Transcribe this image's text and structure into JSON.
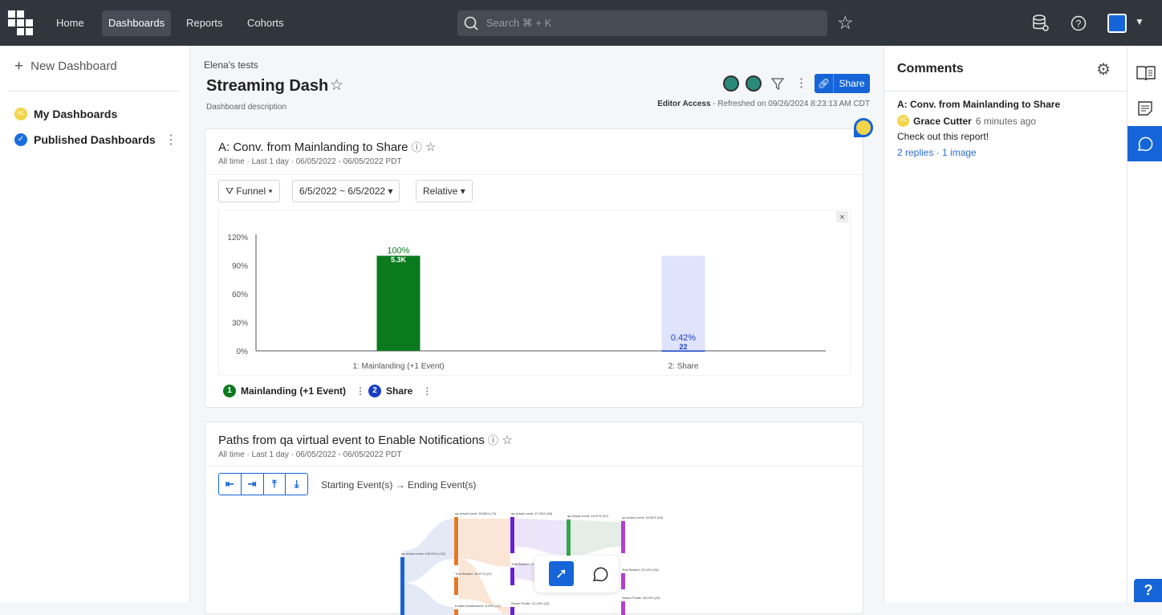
{
  "topbar": {
    "nav": [
      "Home",
      "Dashboards",
      "Reports",
      "Cohorts"
    ],
    "active": "Dashboards",
    "search_placeholder": "Search ⌘ + K"
  },
  "sidebar": {
    "new_dashboard": "New Dashboard",
    "items": [
      {
        "label": "My Dashboards",
        "avatar": "GC"
      },
      {
        "label": "Published Dashboards"
      }
    ]
  },
  "dashboard": {
    "breadcrumb": "Elena's tests",
    "title": "Streaming Dash",
    "description": "Dashboard description",
    "access": "Editor Access",
    "refreshed": " - Refreshed on 09/26/2024 8:23:13 AM CDT",
    "share_label": "Share"
  },
  "card1": {
    "title": "A: Conv. from Mainlanding to Share",
    "subtitle": "All time  ·  Last 1 day  ·  06/05/2022  -  06/05/2022  PDT",
    "controls": [
      "Funnel",
      "6/5/2022 ~ 6/5/2022",
      "Relative"
    ],
    "legend": [
      {
        "num": "1",
        "label": "Mainlanding (+1 Event)",
        "color": "#0b7a1f"
      },
      {
        "num": "2",
        "label": "Share",
        "color": "#1a3fc4"
      }
    ]
  },
  "chart_data": {
    "type": "bar",
    "categories": [
      "1: Mainlanding (+1 Event)",
      "2: Share"
    ],
    "values": [
      100,
      0.42
    ],
    "counts": [
      "5.3K",
      "22"
    ],
    "value_labels": [
      "100%",
      "0.42%"
    ],
    "yticks": [
      "0%",
      "30%",
      "60%",
      "90%",
      "120%"
    ],
    "ylim": [
      0,
      120
    ],
    "colors": [
      "#0b7a1f",
      "#1a3fc4"
    ],
    "background_bar_color": "#dfe3fb"
  },
  "card2": {
    "title": "Paths from qa virtual event to Enable Notifications",
    "subtitle": "All time  ·  Last 1 day  ·  06/05/2022  -  06/05/2022  PDT",
    "starting": "Starting Event(s)",
    "ending": "Ending Event(s)",
    "sankey_labels": [
      "qa virtual event: 100.00% (132)",
      "qa virtual event: 59.85% (79)",
      "Trial Started: 16.67% (22)",
      "Enable Notifications: 8.33% (11)",
      "qa virtual event: 47.93% (58)",
      "Trial Started: 19.01% (23)",
      "Select Profile: 12.40% (15)",
      "qa virtual event: 49.57% (57)",
      "qa virtual event: 40.54% (45)",
      "Trial Started: 23.42% (26)",
      "Select Profile: 18.02% (20)"
    ]
  },
  "comments": {
    "title": "Comments",
    "items": [
      {
        "report": "A: Conv. from Mainlanding to Share",
        "author": "Grace Cutter",
        "avatar": "GC",
        "time": "6 minutes ago",
        "text": "Check out this report!",
        "meta": "2 replies · 1 image"
      }
    ]
  },
  "help_label": "?"
}
